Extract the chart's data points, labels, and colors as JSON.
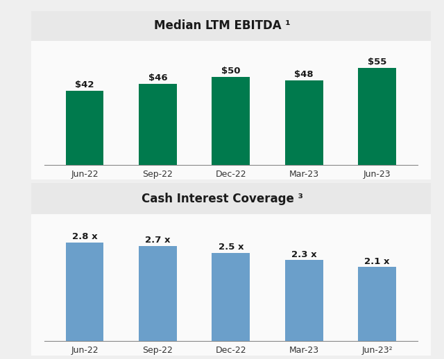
{
  "top_title": "Median LTM EBITDA ¹",
  "bottom_title": "Cash Interest Coverage ³",
  "categories": [
    "Jun-22",
    "Sep-22",
    "Dec-22",
    "Mar-23",
    "Jun-23"
  ],
  "categories_bottom": [
    "Jun-22",
    "Sep-22",
    "Dec-22",
    "Mar-23",
    "Jun-23²"
  ],
  "ebitda_values": [
    42,
    46,
    50,
    48,
    55
  ],
  "ebitda_labels": [
    "$42",
    "$46",
    "$50",
    "$48",
    "$55"
  ],
  "icr_values": [
    2.8,
    2.7,
    2.5,
    2.3,
    2.1
  ],
  "icr_labels": [
    "2.8 x",
    "2.7 x",
    "2.5 x",
    "2.3 x",
    "2.1 x"
  ],
  "bar_color_green": "#007A4D",
  "bar_color_blue": "#6B9FCA",
  "background_color": "#EFEFEF",
  "title_bg_color": "#E8E8E8",
  "chart_bg_color": "#FAFAFA",
  "title_fontsize": 12,
  "label_fontsize": 9.5,
  "tick_fontsize": 9,
  "ebitda_ylim": [
    0,
    68
  ],
  "icr_ylim": [
    0,
    3.5
  ]
}
